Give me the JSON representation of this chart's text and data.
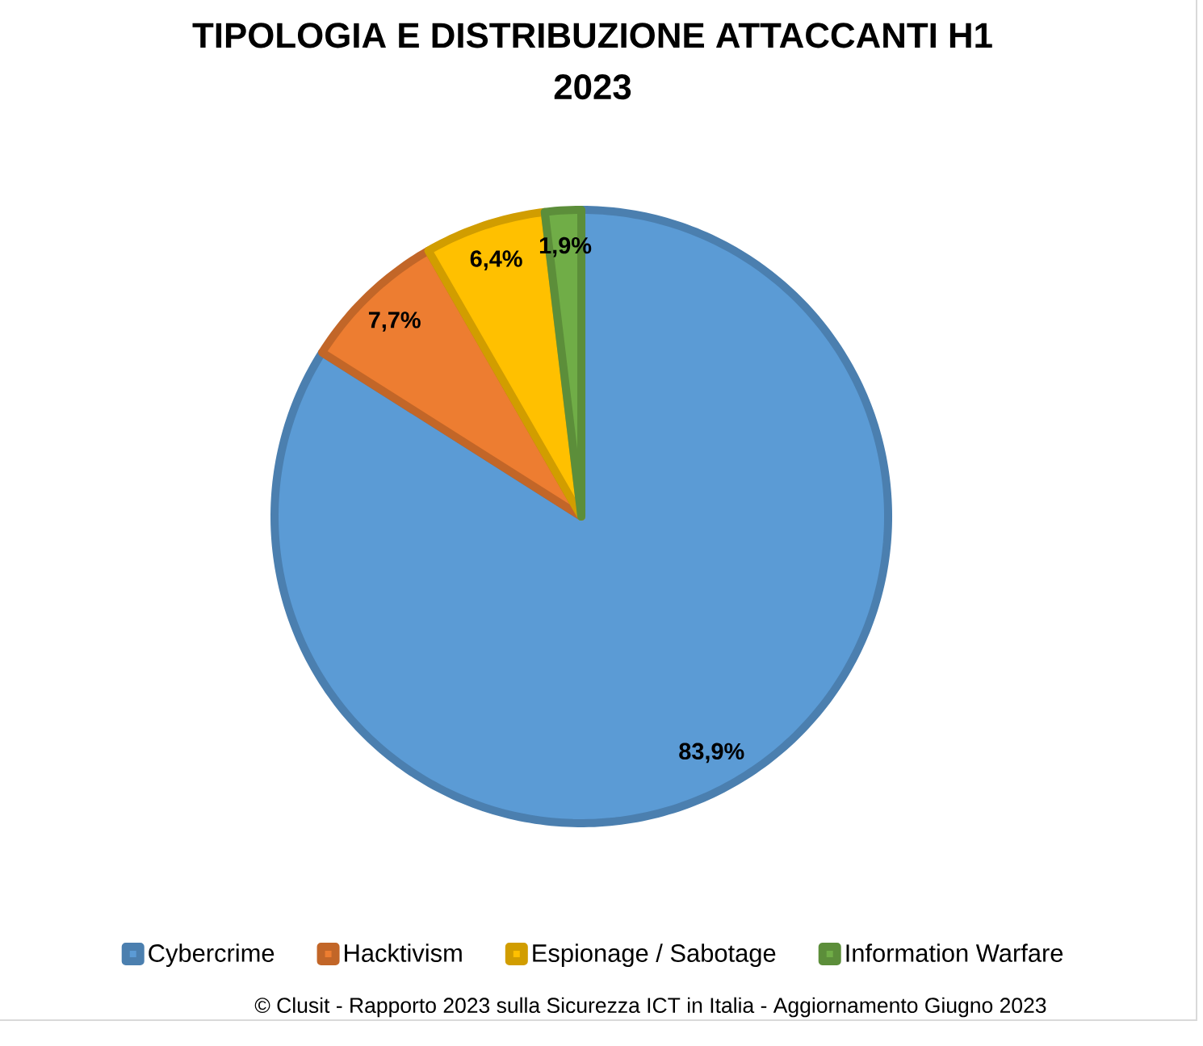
{
  "chart_data": {
    "type": "pie",
    "title": "TIPOLOGIA E DISTRIBUZIONE ATTACCANTI H1 2023",
    "categories": [
      "Cybercrime",
      "Hacktivism",
      "Espionage / Sabotage",
      "Information Warfare"
    ],
    "values": [
      83.9,
      7.7,
      6.4,
      1.9
    ],
    "colors": [
      "#5b9bd5",
      "#ed7d31",
      "#ffc000",
      "#70ad47"
    ],
    "value_labels": [
      "83,9%",
      "7,7%",
      "6,4%",
      "1,9%"
    ],
    "legend": "bottom",
    "annotations": [
      "© Clusit - Rapporto 2023 sulla Sicurezza ICT in Italia - Aggiornamento Giugno 2023"
    ]
  }
}
